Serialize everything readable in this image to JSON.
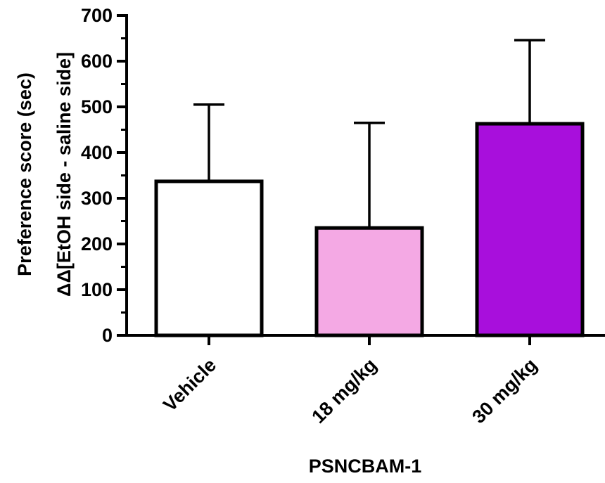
{
  "chart_data": {
    "type": "bar",
    "categories": [
      "Vehicle",
      "18 mg/kg",
      "30 mg/kg"
    ],
    "values": [
      337,
      235,
      463
    ],
    "error_upper": [
      505,
      465,
      646
    ],
    "bar_colors": [
      "#ffffff",
      "#f4a9e4",
      "#a80fdc"
    ],
    "bar_edge_color": "#000000",
    "ylim": [
      0,
      700
    ],
    "yticks": [
      0,
      100,
      200,
      300,
      400,
      500,
      600,
      700
    ],
    "ylabel_line1": "Preference score (sec)",
    "ylabel_line2": "ΔΔ[EtOH side - saline side]",
    "xlabel": "PSNCBAM-1",
    "grid": false
  }
}
